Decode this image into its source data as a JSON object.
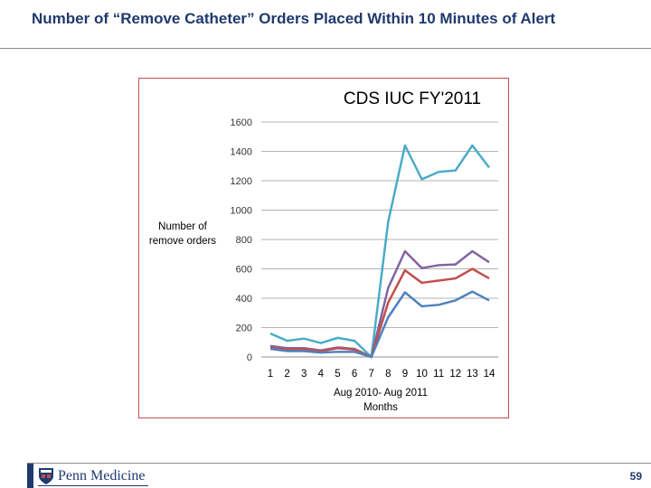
{
  "slide": {
    "title": "Number of “Remove Catheter” Orders Placed Within 10 Minutes of Alert",
    "logo_text": "Penn Medicine",
    "page_number": "59"
  },
  "chart_data": {
    "type": "line",
    "title": "CDS IUC FY'2011",
    "ylabel": [
      "Number of",
      "remove orders"
    ],
    "xlabel": [
      "Aug 2010- Aug 2011",
      "Months"
    ],
    "x": [
      1,
      2,
      3,
      4,
      5,
      6,
      7,
      8,
      9,
      10,
      11,
      12,
      13,
      14
    ],
    "ylim": [
      0,
      1600
    ],
    "yticks": [
      0,
      200,
      400,
      600,
      800,
      1000,
      1200,
      1400,
      1600
    ],
    "grid": true,
    "legend": "none",
    "series": [
      {
        "color": "#4bacc6",
        "values": [
          160,
          110,
          125,
          95,
          130,
          110,
          0,
          920,
          1440,
          1210,
          1260,
          1270,
          1440,
          1290
        ]
      },
      {
        "color": "#8064a2",
        "values": [
          75,
          60,
          60,
          45,
          65,
          55,
          0,
          470,
          720,
          605,
          625,
          630,
          720,
          645
        ]
      },
      {
        "color": "#c0504d",
        "values": [
          65,
          50,
          55,
          40,
          60,
          50,
          0,
          370,
          590,
          505,
          520,
          535,
          600,
          535
        ]
      },
      {
        "color": "#4f81bd",
        "values": [
          55,
          40,
          40,
          30,
          35,
          35,
          0,
          270,
          440,
          345,
          355,
          385,
          445,
          385
        ]
      }
    ]
  }
}
